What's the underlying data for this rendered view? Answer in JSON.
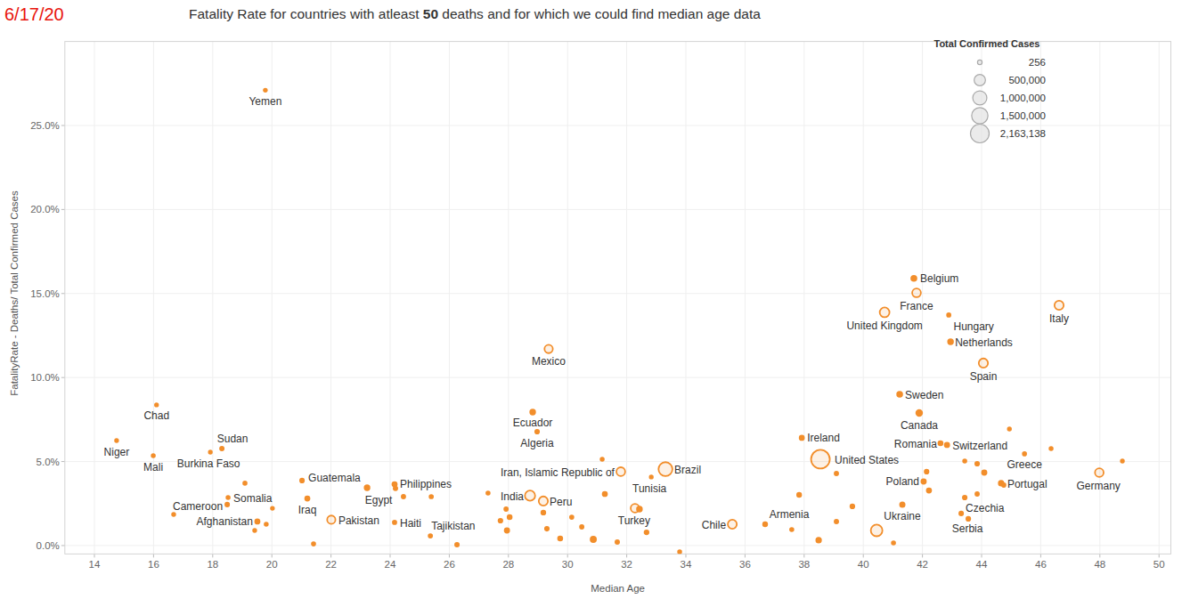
{
  "chart_data": {
    "type": "scatter",
    "title": "Fatality Rate for countries with atleast 50 deaths and for which we could find median age data",
    "annotations": [
      "6/17/20"
    ],
    "x_label": "Median Age",
    "y_label": "FatalityRate - Deaths/ Total Confirmed Cases",
    "color": "#f28e2b",
    "marker": "circle",
    "grid": true,
    "xlim": [
      13,
      50.4
    ],
    "ylim": [
      -0.5,
      30
    ],
    "xticks": [
      14,
      16,
      18,
      20,
      22,
      24,
      26,
      28,
      30,
      32,
      34,
      36,
      38,
      40,
      42,
      44,
      46,
      48,
      50
    ],
    "yticks": [
      {
        "value": 0,
        "label": "0.0%"
      },
      {
        "value": 5,
        "label": "5.0%"
      },
      {
        "value": 10,
        "label": "10.0%"
      },
      {
        "value": 15,
        "label": "15.0%"
      },
      {
        "value": 20,
        "label": "20.0%"
      },
      {
        "value": 25,
        "label": "25.0%"
      }
    ],
    "labels": [
      "Yemen",
      "Chad",
      "Niger",
      "Mali",
      "Sudan",
      "Burkina Faso",
      "Somalia",
      "Cameroon",
      "Afghanistan",
      "Iraq",
      "Guatemala",
      "Pakistan",
      "Egypt",
      "Philippines",
      "Haiti",
      "Tajikistan",
      "India",
      "Peru",
      "Ecuador",
      "Algeria",
      "Mexico",
      "Iran, Islamic Republic of",
      "Brazil",
      "Tunisia",
      "Turkey",
      "Chile",
      "Armenia",
      "Ireland",
      "United States",
      "Ukraine",
      "Sweden",
      "Canada",
      "Belgium",
      "France",
      "United Kingdom",
      "Hungary",
      "Netherlands",
      "Spain",
      "Italy",
      "Romania",
      "Switzerland",
      "Poland",
      "Greece",
      "Portugal",
      "Germany",
      "Czechia",
      "Serbia",
      null,
      null,
      null,
      null,
      null,
      null,
      null,
      null,
      null,
      null,
      null,
      null,
      null,
      null,
      null,
      null,
      null,
      null,
      null,
      null,
      null,
      null,
      null,
      null,
      null,
      null,
      null,
      null,
      null,
      null,
      null,
      null,
      null,
      null,
      null,
      null,
      null,
      null,
      null,
      null,
      null,
      null,
      null,
      null
    ],
    "x": [
      19.78,
      16.1,
      14.75,
      15.99,
      18.31,
      17.92,
      18.52,
      18.49,
      19.51,
      21.2,
      21.02,
      22.01,
      23.22,
      24.15,
      24.15,
      25.36,
      28.73,
      29.18,
      28.82,
      28.97,
      29.36,
      31.8,
      33.31,
      32.83,
      32.28,
      35.57,
      36.68,
      37.92,
      38.55,
      41.32,
      41.23,
      41.89,
      41.71,
      41.8,
      40.72,
      42.89,
      42.95,
      44.06,
      46.62,
      42.61,
      42.83,
      42.04,
      45.45,
      44.66,
      47.98,
      43.31,
      43.55,
      19.09,
      20.02,
      16.68,
      19.81,
      19.42,
      21.41,
      24.18,
      24.45,
      25.39,
      27.31,
      26.26,
      27.73,
      27.92,
      28.04,
      27.95,
      29.18,
      29.3,
      29.75,
      30.14,
      30.48,
      30.87,
      31.17,
      31.26,
      31.68,
      32.43,
      32.67,
      33.79,
      37.83,
      37.58,
      38.49,
      39.09,
      39.63,
      39.09,
      40.45,
      41.02,
      42.14,
      42.22,
      43.43,
      43.85,
      44.09,
      43.85,
      43.43,
      44.94,
      46.35,
      48.76,
      44.75
    ],
    "y": [
      27.1,
      8.37,
      6.25,
      5.35,
      5.77,
      5.56,
      2.86,
      2.44,
      1.43,
      2.8,
      3.87,
      1.54,
      3.44,
      3.65,
      1.38,
      0.58,
      2.97,
      2.65,
      7.94,
      6.78,
      11.7,
      4.4,
      4.55,
      4.08,
      2.22,
      1.27,
      1.27,
      6.41,
      5.14,
      2.44,
      9.0,
      7.89,
      15.9,
      15.04,
      13.88,
      13.72,
      12.13,
      10.86,
      14.3,
      6.09,
      5.99,
      3.81,
      5.46,
      3.71,
      4.34,
      1.91,
      1.59,
      3.71,
      2.22,
      1.85,
      1.27,
      0.9,
      0.1,
      3.4,
      2.91,
      2.91,
      3.12,
      0.05,
      1.48,
      2.17,
      1.69,
      0.9,
      1.96,
      1.0,
      0.42,
      1.69,
      1.11,
      0.37,
      5.14,
      3.07,
      0.21,
      2.17,
      0.79,
      -0.37,
      3.02,
      0.95,
      0.32,
      4.29,
      2.33,
      1.43,
      0.9,
      0.16,
      4.4,
      3.28,
      5.03,
      4.87,
      4.34,
      3.07,
      2.86,
      6.94,
      5.77,
      5.03,
      3.6
    ],
    "sizes": [
      900,
      860,
      980,
      1800,
      7400,
      890,
      2600,
      9600,
      26000,
      25000,
      11000,
      155000,
      47000,
      27000,
      5000,
      5000,
      355000,
      240000,
      48000,
      11000,
      160000,
      195000,
      960000,
      1100,
      183000,
      220000,
      17000,
      25000,
      2163138,
      34000,
      54000,
      99000,
      60000,
      195000,
      300000,
      4100,
      49000,
      245000,
      237000,
      22000,
      31000,
      30000,
      3200,
      38000,
      188000,
      10000,
      12000,
      3000,
      1000,
      1500,
      2000,
      1200,
      3500,
      8000,
      6000,
      4000,
      3000,
      9000,
      12000,
      5000,
      18000,
      30000,
      15000,
      10000,
      20000,
      4000,
      6000,
      70000,
      2000,
      24000,
      8000,
      50000,
      14000,
      2000,
      16000,
      3000,
      40000,
      6000,
      14000,
      7000,
      550000,
      3000,
      11000,
      26000,
      2500,
      11000,
      30000,
      6000,
      11000,
      1600,
      2000,
      1400,
      5000
    ],
    "size_legend": {
      "title": "Total Confirmed Cases",
      "values": [
        256,
        500000,
        1000000,
        1500000,
        2163138
      ],
      "value_labels": [
        "256",
        "500,000",
        "1,000,000",
        "1,500,000",
        "2,163,138"
      ]
    }
  }
}
